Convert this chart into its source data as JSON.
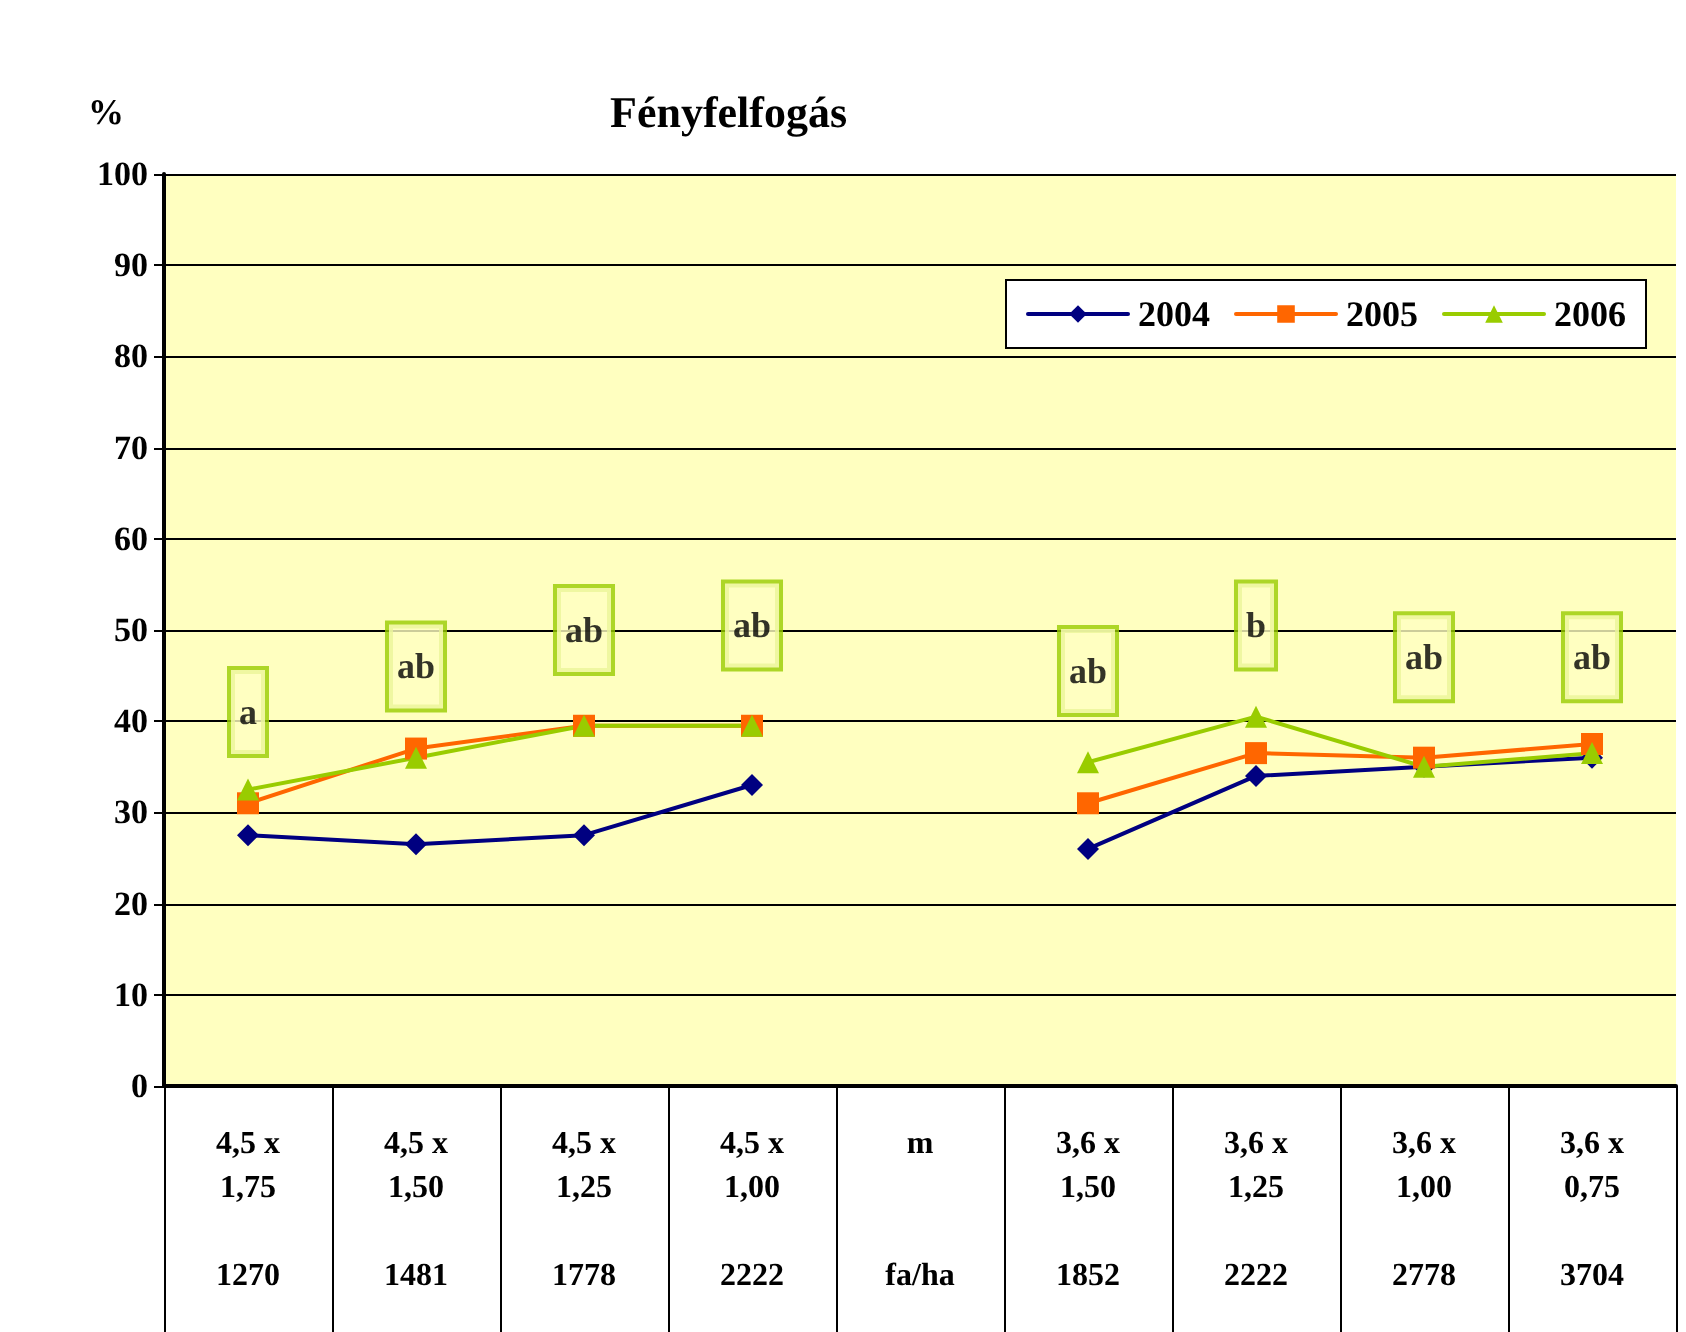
{
  "chart_data": {
    "type": "line",
    "title": "Fényfelfogás",
    "ylabel": "%",
    "categories": [
      "4,5 x\n1,75\n\n1270",
      "4,5 x\n1,50\n\n1481",
      "4,5 x\n1,25\n\n1778",
      "4,5 x\n1,00\n\n2222",
      "m\n\n\nfa/ha",
      "3,6 x\n1,50\n\n1852",
      "3,6 x\n1,25\n\n2222",
      "3,6 x\n1,00\n\n2778",
      "3,6 x\n0,75\n\n3704"
    ],
    "series": [
      {
        "name": "2004",
        "color": "#000080",
        "marker": "diamond",
        "values": [
          27.5,
          26.5,
          27.5,
          33,
          null,
          26,
          34,
          35,
          36
        ]
      },
      {
        "name": "2005",
        "color": "#ff6600",
        "marker": "square",
        "values": [
          31,
          37,
          39.5,
          39.5,
          null,
          31,
          36.5,
          36,
          37.5
        ]
      },
      {
        "name": "2006",
        "color": "#99cc00",
        "marker": "triangle",
        "values": [
          32.5,
          36,
          39.5,
          39.5,
          null,
          35.5,
          40.5,
          35,
          36.5
        ]
      }
    ],
    "annotations": [
      {
        "text": "a",
        "x": "4,5 x\n1,75\n\n1270",
        "y": 41
      },
      {
        "text": "ab",
        "x": "4,5 x\n1,50\n\n1481",
        "y": 46
      },
      {
        "text": "ab",
        "x": "4,5 x\n1,25\n\n1778",
        "y": 50
      },
      {
        "text": "ab",
        "x": "4,5 x\n1,00\n\n2222",
        "y": 50.5
      },
      {
        "text": "ab",
        "x": "3,6 x\n1,50\n\n1852",
        "y": 45.5
      },
      {
        "text": "b",
        "x": "3,6 x\n1,25\n\n2222",
        "y": 50.5
      },
      {
        "text": "ab",
        "x": "3,6 x\n1,00\n\n2778",
        "y": 47
      },
      {
        "text": "ab",
        "x": "3,6 x\n0,75\n\n3704",
        "y": 47
      }
    ],
    "ylim": [
      0,
      100
    ],
    "yticks": [
      0,
      10,
      20,
      30,
      40,
      50,
      60,
      70,
      80,
      90,
      100
    ],
    "grid": "y",
    "legend": "top right",
    "line_style": "solid"
  }
}
